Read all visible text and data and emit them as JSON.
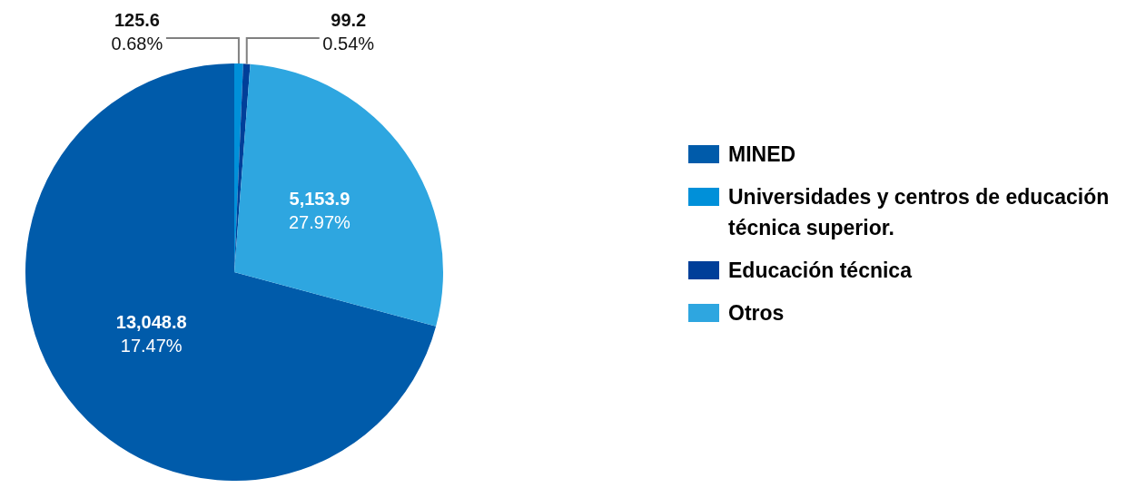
{
  "chart_data": {
    "type": "pie",
    "categories": [
      "MINED",
      "Universidades y centros de educación técnica superior.",
      "Educación técnica",
      "Otros"
    ],
    "values": [
      13048.8,
      125.6,
      99.2,
      5153.9
    ],
    "colors": [
      "#005baa",
      "#0090d9",
      "#003f99",
      "#2ea6e0"
    ],
    "value_labels": [
      "13,048.8\n17.47%",
      "125.6\n0.68%",
      "99.2\n0.54%",
      "5,153.9\n27.97%"
    ],
    "legend": "right"
  }
}
